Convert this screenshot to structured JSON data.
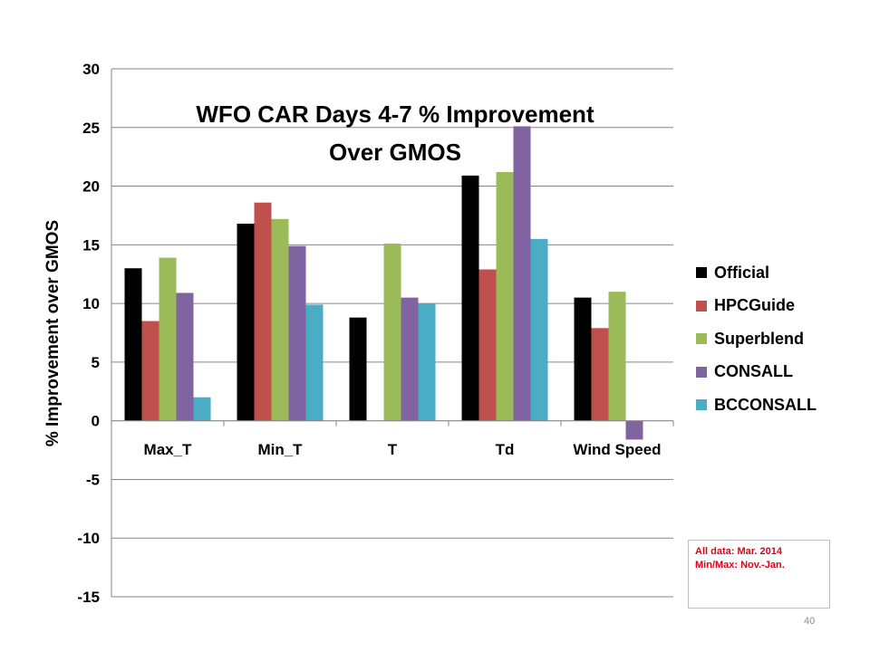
{
  "chart_data": {
    "type": "bar",
    "title_lines": [
      "WFO CAR Days 4-7 % Improvement",
      "Over GMOS"
    ],
    "ylabel": "% Improvement over GMOS",
    "xlabel": "",
    "categories": [
      "Max_T",
      "Min_T",
      "T",
      "Td",
      "Wind Speed"
    ],
    "series": [
      {
        "name": "Official",
        "color": "#000000",
        "values": [
          13,
          16.8,
          8.8,
          20.9,
          10.5
        ]
      },
      {
        "name": "HPCGuide",
        "color": "#c0504d",
        "values": [
          8.5,
          18.6,
          null,
          12.9,
          7.9
        ]
      },
      {
        "name": "Superblend",
        "color": "#9bbb59",
        "values": [
          13.9,
          17.2,
          15.1,
          21.2,
          11
        ]
      },
      {
        "name": "CONSALL",
        "color": "#8064a2",
        "values": [
          10.9,
          14.9,
          10.5,
          25.1,
          -1.6
        ]
      },
      {
        "name": "BCCONSALL",
        "color": "#4bacc6",
        "values": [
          2,
          9.9,
          10,
          15.5,
          null
        ]
      }
    ],
    "ylim": [
      -15,
      30
    ],
    "yticks": [
      30,
      25,
      20,
      15,
      10,
      5,
      0,
      -5,
      -10,
      -15
    ],
    "grid": true,
    "legend_position": "right"
  },
  "note": {
    "line1": "All data: Mar. 2014",
    "line2": "Min/Max:  Nov.-Jan."
  },
  "page_number": "40"
}
